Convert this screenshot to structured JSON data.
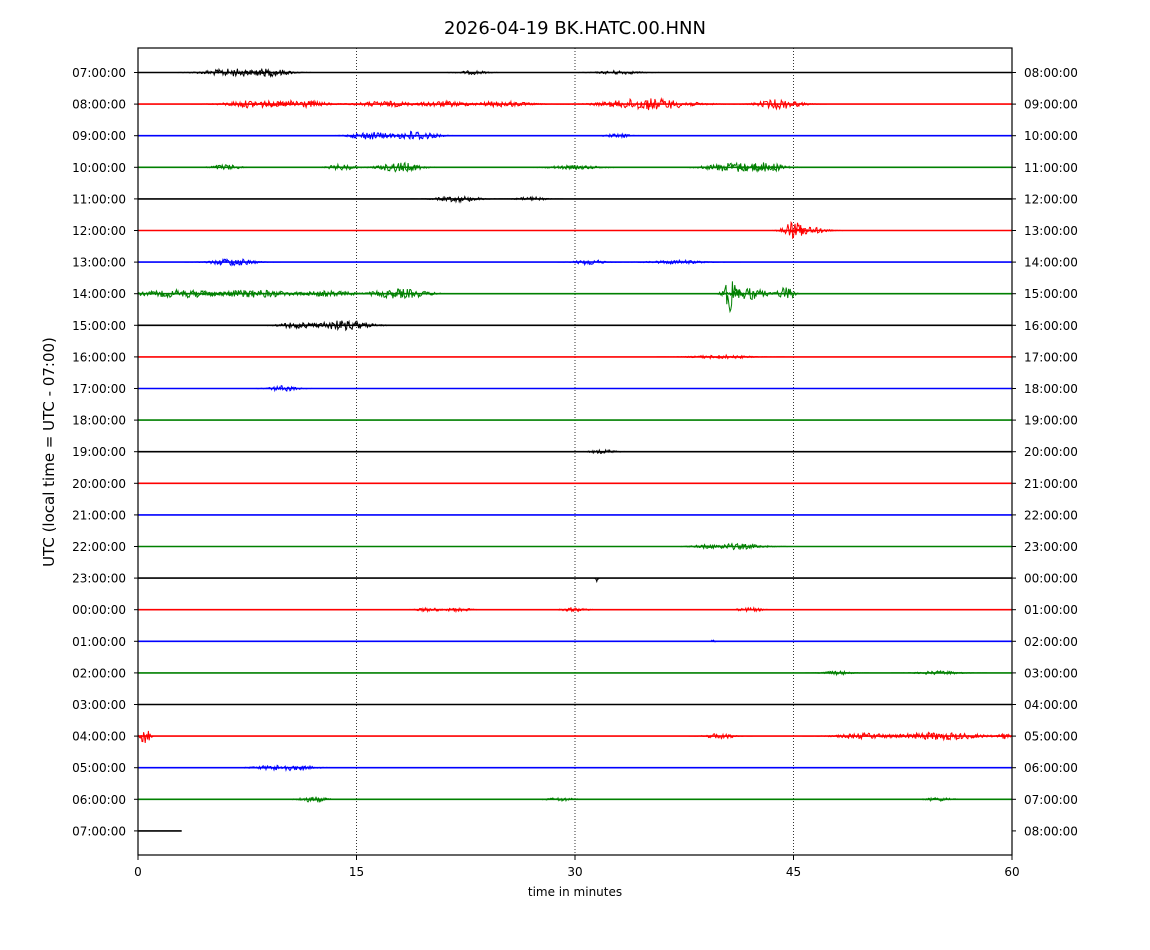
{
  "chart_data": {
    "type": "line",
    "title": "2026-04-19 BK.HATC.00.HNN",
    "xlabel": "time in minutes",
    "ylabel": "UTC (local time = UTC - 07:00)",
    "xlim": [
      0,
      60
    ],
    "x_ticks": [
      "0",
      "15",
      "30",
      "45",
      "60"
    ],
    "vertical_gridlines_at": [
      15,
      30,
      45
    ],
    "left_labels": [
      "07:00:00",
      "08:00:00",
      "09:00:00",
      "10:00:00",
      "11:00:00",
      "12:00:00",
      "13:00:00",
      "14:00:00",
      "15:00:00",
      "16:00:00",
      "17:00:00",
      "18:00:00",
      "19:00:00",
      "20:00:00",
      "21:00:00",
      "22:00:00",
      "23:00:00",
      "00:00:00",
      "01:00:00",
      "02:00:00",
      "03:00:00",
      "04:00:00",
      "05:00:00",
      "06:00:00",
      "07:00:00"
    ],
    "right_labels": [
      "08:00:00",
      "09:00:00",
      "10:00:00",
      "11:00:00",
      "12:00:00",
      "13:00:00",
      "14:00:00",
      "15:00:00",
      "16:00:00",
      "17:00:00",
      "18:00:00",
      "19:00:00",
      "20:00:00",
      "21:00:00",
      "22:00:00",
      "23:00:00",
      "00:00:00",
      "01:00:00",
      "02:00:00",
      "03:00:00",
      "04:00:00",
      "05:00:00",
      "06:00:00",
      "07:00:00",
      "08:00:00"
    ],
    "trace_colors": [
      "#000000",
      "#ff0000",
      "#0000ff",
      "#008000"
    ],
    "traces": [
      {
        "end_minute": 60,
        "bursts": [
          [
            6.5,
            2,
            4
          ],
          [
            9,
            1.5,
            4
          ],
          [
            23,
            1,
            2
          ],
          [
            33,
            1.5,
            2
          ]
        ]
      },
      {
        "end_minute": 60,
        "bursts": [
          [
            8,
            2,
            4
          ],
          [
            11,
            2,
            4
          ],
          [
            17,
            2,
            3
          ],
          [
            21,
            2,
            3
          ],
          [
            25,
            2,
            3
          ],
          [
            35,
            3,
            6
          ],
          [
            44,
            1.5,
            5
          ]
        ]
      },
      {
        "end_minute": 60,
        "bursts": [
          [
            16,
            1.5,
            4
          ],
          [
            19,
            1.5,
            5
          ],
          [
            33,
            1,
            2
          ]
        ]
      },
      {
        "end_minute": 60,
        "bursts": [
          [
            6,
            1,
            3
          ],
          [
            14,
            1,
            3
          ],
          [
            18,
            1.5,
            5
          ],
          [
            30,
            2,
            2
          ],
          [
            41,
            2,
            5
          ],
          [
            43,
            1.5,
            5
          ]
        ]
      },
      {
        "end_minute": 60,
        "bursts": [
          [
            22,
            1.5,
            3
          ],
          [
            27,
            1,
            2
          ]
        ]
      },
      {
        "end_minute": 60,
        "bursts": [
          [
            45,
            0.7,
            10
          ],
          [
            46,
            1.2,
            4
          ]
        ]
      },
      {
        "end_minute": 60,
        "bursts": [
          [
            6.5,
            1.5,
            4
          ],
          [
            31,
            1,
            3
          ],
          [
            37,
            2,
            2
          ]
        ]
      },
      {
        "end_minute": 60,
        "bursts": [
          [
            3,
            3,
            4
          ],
          [
            8,
            3,
            4
          ],
          [
            18,
            2,
            5
          ],
          [
            13,
            2,
            3
          ],
          [
            40.7,
            0.5,
            18
          ],
          [
            42,
            1.2,
            6
          ],
          [
            44.5,
            0.6,
            7
          ]
        ]
      },
      {
        "end_minute": 60,
        "bursts": [
          [
            14,
            2,
            5
          ],
          [
            11,
            1.5,
            3
          ]
        ]
      },
      {
        "end_minute": 60,
        "bursts": [
          [
            40,
            2,
            2
          ]
        ]
      },
      {
        "end_minute": 60,
        "bursts": [
          [
            10,
            1,
            3
          ]
        ]
      },
      {
        "end_minute": 60,
        "bursts": []
      },
      {
        "end_minute": 60,
        "bursts": [
          [
            32,
            1,
            2
          ]
        ]
      },
      {
        "end_minute": 60,
        "bursts": []
      },
      {
        "end_minute": 60,
        "bursts": []
      },
      {
        "end_minute": 60,
        "bursts": [
          [
            41,
            2,
            3
          ],
          [
            39,
            1,
            2
          ]
        ]
      },
      {
        "end_minute": 60,
        "bursts": [
          [
            31.5,
            0.1,
            4
          ]
        ]
      },
      {
        "end_minute": 60,
        "bursts": [
          [
            20,
            1,
            2
          ],
          [
            22,
            1,
            2
          ],
          [
            30,
            1,
            2
          ],
          [
            42,
            1,
            2
          ]
        ]
      },
      {
        "end_minute": 60,
        "bursts": [
          [
            39.5,
            0.1,
            4
          ]
        ]
      },
      {
        "end_minute": 60,
        "bursts": [
          [
            48,
            1,
            2
          ],
          [
            55,
            1.5,
            2
          ]
        ]
      },
      {
        "end_minute": 60,
        "bursts": []
      },
      {
        "end_minute": 60,
        "bursts": [
          [
            0.5,
            0.3,
            11
          ],
          [
            40,
            1,
            3
          ],
          [
            50,
            2,
            3
          ],
          [
            55,
            3,
            4
          ],
          [
            59.5,
            0.5,
            3
          ]
        ]
      },
      {
        "end_minute": 60,
        "bursts": [
          [
            10,
            2,
            3
          ]
        ]
      },
      {
        "end_minute": 60,
        "bursts": [
          [
            12,
            1,
            3
          ],
          [
            29,
            1,
            2
          ],
          [
            55,
            1,
            2
          ]
        ]
      },
      {
        "end_minute": 3,
        "bursts": []
      }
    ]
  }
}
